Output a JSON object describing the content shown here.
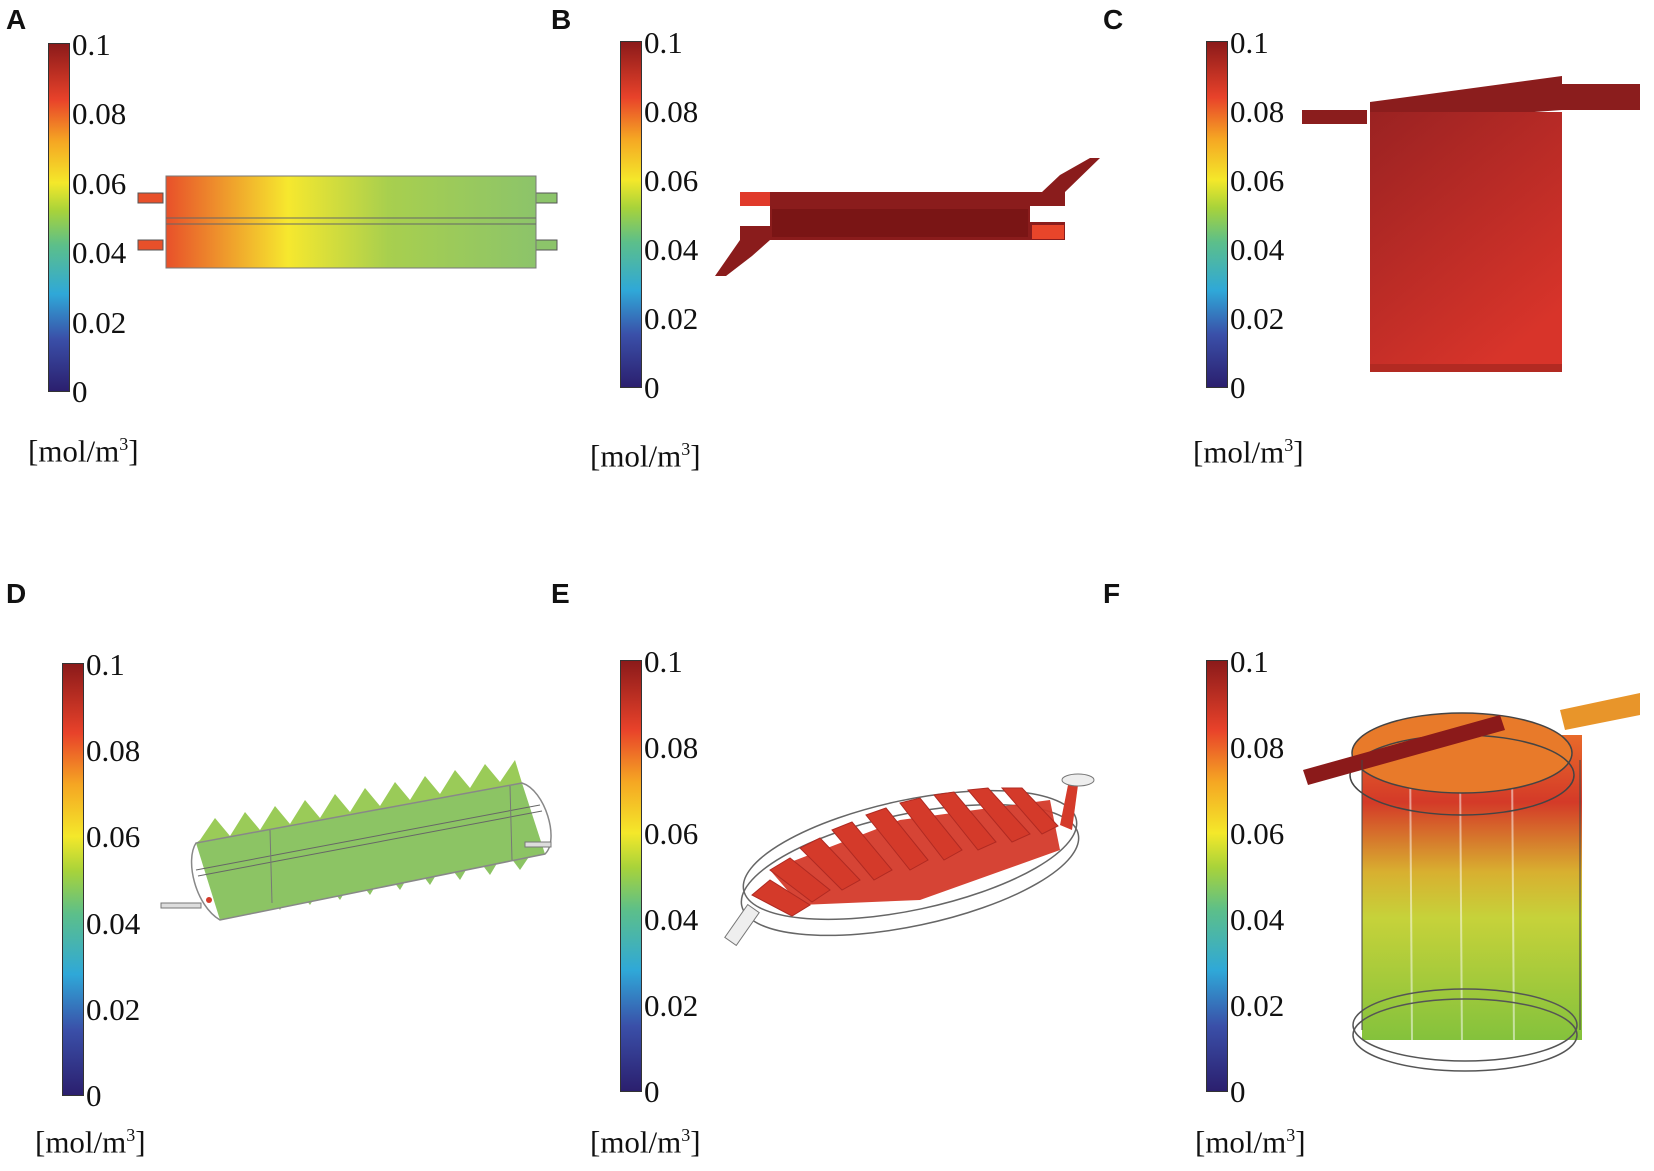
{
  "panels": [
    {
      "letter": "A"
    },
    {
      "letter": "B"
    },
    {
      "letter": "C"
    },
    {
      "letter": "D"
    },
    {
      "letter": "E"
    },
    {
      "letter": "F"
    }
  ],
  "colorbar": {
    "ticks": [
      "0.1",
      "0.08",
      "0.06",
      "0.04",
      "0.02",
      "0"
    ],
    "unit_prefix": "[mol/m",
    "unit_exp": "3",
    "unit_suffix": "]",
    "min": 0,
    "max": 0.1
  },
  "colors": {
    "dark_red": "#8b1a1a",
    "red": "#d83a2a",
    "orange": "#f08a2a",
    "yellow": "#f4e82a",
    "green": "#8cc45a"
  }
}
